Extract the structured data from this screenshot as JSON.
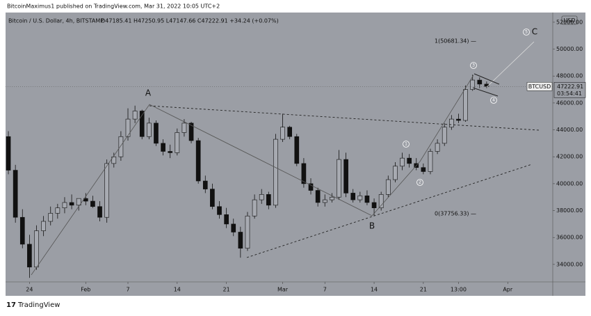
{
  "header": {
    "publisher": "BitcoinMaximus1 published on TradingView.com, Mar 31, 2022 10:05 UTC+2",
    "symbol": "Bitcoin / U.S. Dollar, 4h, BITSTAMP",
    "ohlc": "O47185.41 H47250.95 L47147.66 C47222.91 +34.24 (+0.07%)",
    "currency": "USD"
  },
  "footer": {
    "brand": "TradingView"
  },
  "chart_data": {
    "type": "candlestick",
    "x": [
      -3,
      -2,
      -1,
      0,
      1,
      2,
      3,
      4,
      5,
      6,
      7,
      8,
      9,
      10,
      11,
      12,
      13,
      14,
      15,
      16,
      17,
      18,
      19,
      20,
      21,
      22,
      23,
      24,
      25,
      26,
      27,
      28,
      29,
      30,
      31,
      32,
      33,
      34,
      35,
      36,
      37,
      38,
      39,
      40,
      41,
      42,
      43,
      44,
      45,
      46,
      47,
      48,
      49,
      50,
      51,
      52,
      53,
      54,
      55,
      56,
      57,
      58,
      59,
      60,
      61,
      62,
      63,
      64,
      65
    ],
    "open": [
      43500,
      41000,
      37500,
      35500,
      33800,
      36500,
      37200,
      37800,
      38200,
      38600,
      38400,
      38900,
      38700,
      38300,
      37500,
      41500,
      42000,
      43500,
      44800,
      45400,
      43500,
      44500,
      43000,
      42400,
      42300,
      43800,
      44500,
      43200,
      40200,
      39600,
      38300,
      37700,
      37000,
      36400,
      35200,
      37600,
      38800,
      39200,
      38400,
      43300,
      44200,
      43500,
      41500,
      40000,
      39500,
      38600,
      38800,
      39000,
      41800,
      39300,
      38800,
      39100,
      38600,
      38200,
      39200,
      40300,
      41300,
      41900,
      41500,
      41200,
      40900,
      42400,
      43000,
      44200,
      44800,
      44700,
      47000,
      47700,
      47400
    ],
    "high": [
      43900,
      41400,
      38100,
      36200,
      36900,
      37600,
      38300,
      38500,
      39000,
      39200,
      38900,
      39300,
      39100,
      38700,
      41800,
      42300,
      43900,
      45600,
      45800,
      45500,
      44900,
      44700,
      43300,
      42900,
      44100,
      44800,
      44600,
      43400,
      40600,
      40000,
      38700,
      38200,
      37400,
      36800,
      37900,
      39200,
      39600,
      39400,
      43700,
      45200,
      44300,
      43700,
      41900,
      40400,
      39700,
      39200,
      39300,
      42500,
      42300,
      39600,
      39400,
      39500,
      38900,
      39400,
      40600,
      41600,
      42300,
      42200,
      41900,
      41500,
      42600,
      43300,
      44500,
      45100,
      45200,
      47300,
      48100,
      47900,
      47600
    ],
    "low": [
      40700,
      37100,
      35200,
      33000,
      33600,
      36100,
      36900,
      37400,
      37800,
      38100,
      38000,
      38400,
      38200,
      37200,
      37100,
      41200,
      41700,
      43200,
      44500,
      43300,
      43300,
      42800,
      42100,
      41900,
      42100,
      43500,
      43000,
      40000,
      39300,
      38100,
      37400,
      36700,
      36100,
      34500,
      35000,
      37400,
      38500,
      38100,
      38200,
      43100,
      43300,
      41300,
      39700,
      39200,
      38300,
      38300,
      38600,
      38800,
      39000,
      38600,
      38600,
      38400,
      37600,
      38000,
      39000,
      40100,
      41000,
      41200,
      41000,
      40700,
      40700,
      42200,
      42800,
      44000,
      44500,
      44600,
      46900,
      47100,
      47100
    ],
    "close": [
      41000,
      37500,
      35500,
      33800,
      36500,
      37200,
      37800,
      38200,
      38600,
      38400,
      38900,
      38700,
      38300,
      37500,
      41500,
      42000,
      43500,
      44800,
      45400,
      43500,
      44500,
      43000,
      42400,
      42300,
      43800,
      44500,
      43200,
      40200,
      39600,
      38300,
      37700,
      37000,
      36400,
      35200,
      37600,
      38800,
      39200,
      38400,
      43300,
      44200,
      43500,
      41500,
      40000,
      39500,
      38600,
      38800,
      39000,
      41800,
      39300,
      38800,
      39100,
      38600,
      38200,
      39200,
      40300,
      41300,
      41900,
      41500,
      41200,
      40900,
      42400,
      43000,
      44200,
      44800,
      44700,
      47000,
      47700,
      47400,
      47223
    ],
    "up_color": "#a7aab1",
    "down_color": "#111111",
    "xlim": [
      -3.4,
      74.4
    ],
    "xticks": [
      {
        "value": 0,
        "label": "24"
      },
      {
        "value": 8,
        "label": "Feb"
      },
      {
        "value": 14,
        "label": "7"
      },
      {
        "value": 21,
        "label": "14"
      },
      {
        "value": 28,
        "label": "21"
      },
      {
        "value": 36,
        "label": "Mar"
      },
      {
        "value": 42,
        "label": "7"
      },
      {
        "value": 49,
        "label": "14"
      },
      {
        "value": 56,
        "label": "21"
      },
      {
        "value": 61,
        "label": "13:00"
      },
      {
        "value": 68,
        "label": "Apr"
      }
    ],
    "ylim": [
      32700,
      52720
    ],
    "yticks": [
      {
        "value": 34000,
        "label": "34000.00"
      },
      {
        "value": 36000,
        "label": "36000.00"
      },
      {
        "value": 38000,
        "label": "38000.00"
      },
      {
        "value": 40000,
        "label": "40000.00"
      },
      {
        "value": 42000,
        "label": "42000.00"
      },
      {
        "value": 44000,
        "label": "44000.00"
      },
      {
        "value": 46000,
        "label": "46000.00"
      },
      {
        "value": 48000,
        "label": "48000.00"
      },
      {
        "value": 50000,
        "label": "50000.00"
      },
      {
        "value": 52000,
        "label": "52000.00"
      }
    ],
    "last_price": {
      "value": 47222.91,
      "label": "47222.91",
      "countdown": "03:54:41",
      "ticker": "BTCUSD"
    },
    "annotations": {
      "a": "A",
      "b": "B",
      "c": "C",
      "w1": "1",
      "w2": "2",
      "w3": "3",
      "w4": "4",
      "w5": "5",
      "fib_top": "1(50681.34) —",
      "fib_bottom": "0(37756.33) —"
    }
  }
}
